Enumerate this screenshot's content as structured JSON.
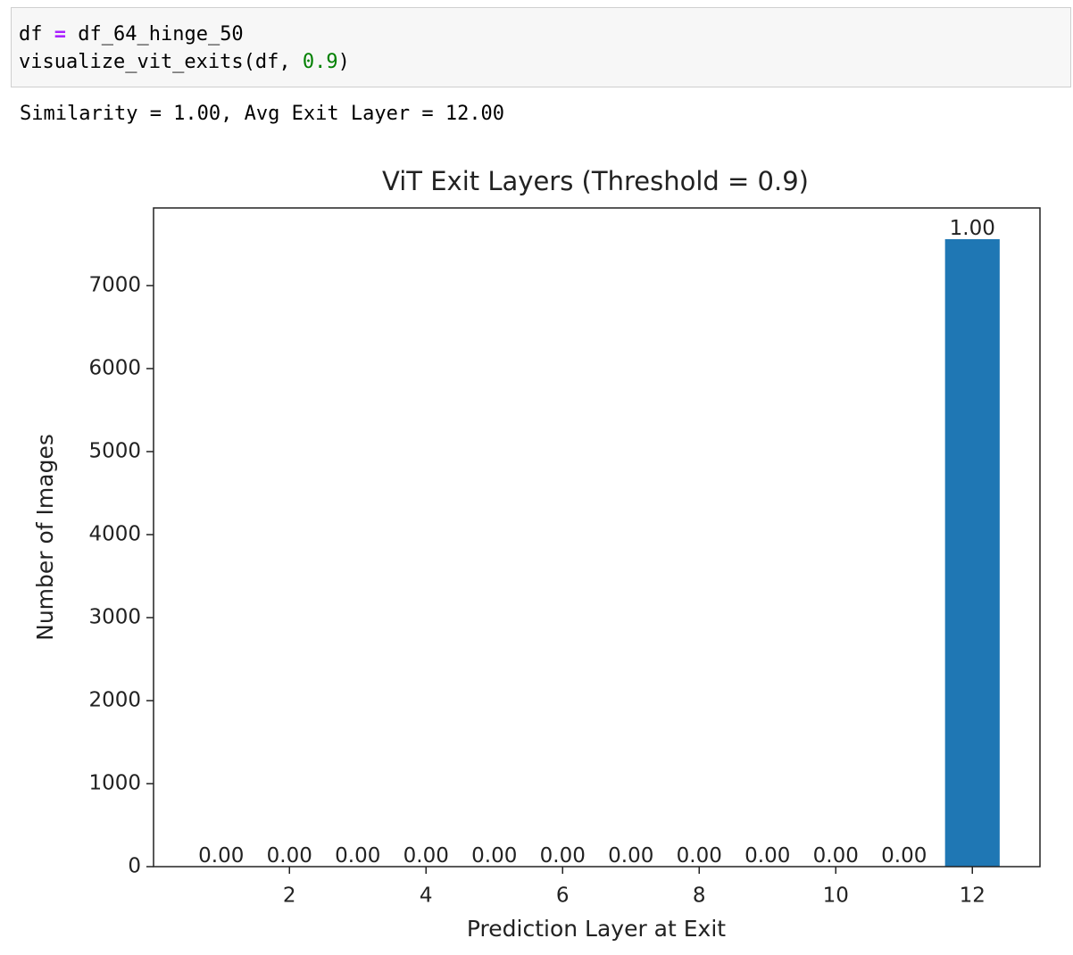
{
  "code": {
    "lines": [
      [
        "df",
        "=",
        "df_64_hinge_50"
      ],
      [
        "visualize_vit_exits(df, ",
        "0.9",
        ")"
      ]
    ]
  },
  "output": "Similarity = 1.00, Avg Exit Layer = 12.00",
  "chart_data": {
    "type": "bar",
    "title": "ViT Exit Layers (Threshold = 0.9)",
    "x_label": "Prediction Layer at Exit",
    "y_label": "Number of Images",
    "x": [
      1,
      2,
      3,
      4,
      5,
      6,
      7,
      8,
      9,
      10,
      11,
      12
    ],
    "values": [
      0,
      0,
      0,
      0,
      0,
      0,
      0,
      0,
      0,
      0,
      0,
      7559
    ],
    "fraction_labels": [
      "0.00",
      "0.00",
      "0.00",
      "0.00",
      "0.00",
      "0.00",
      "0.00",
      "0.00",
      "0.00",
      "0.00",
      "0.00",
      "1.00"
    ],
    "color": "#1f77b4",
    "bar_width": 0.8,
    "xlim": [
      0.01,
      12.99
    ],
    "xticks": [
      2,
      4,
      6,
      8,
      10,
      12
    ],
    "ylim": [
      0,
      7935
    ],
    "yticks": [
      0,
      1000,
      2000,
      3000,
      4000,
      5000,
      6000,
      7000
    ]
  }
}
